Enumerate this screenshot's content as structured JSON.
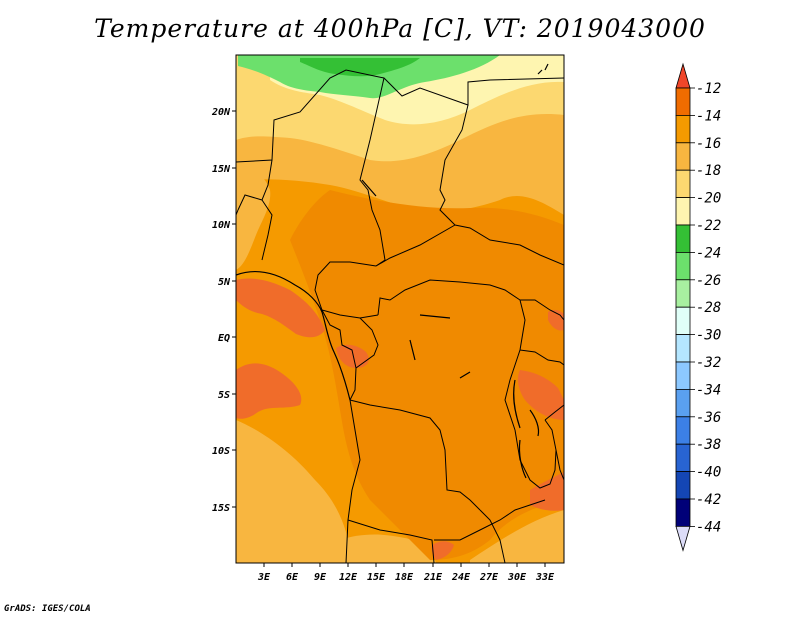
{
  "title": "Temperature at 400hPa [C], VT: 2019043000",
  "credit": "GrADS: IGES/COLA",
  "map": {
    "lon_labels": [
      "3E",
      "6E",
      "9E",
      "12E",
      "15E",
      "18E",
      "21E",
      "24E",
      "27E",
      "30E",
      "33E"
    ],
    "lat_labels": [
      "20N",
      "15N",
      "10N",
      "5N",
      "EQ",
      "5S",
      "10S",
      "15S"
    ]
  },
  "colorbar": {
    "labels": [
      "-12",
      "-14",
      "-16",
      "-18",
      "-20",
      "-22",
      "-24",
      "-26",
      "-28",
      "-30",
      "-32",
      "-34",
      "-36",
      "-38",
      "-40",
      "-42",
      "-44"
    ],
    "colors": [
      "#f0462a",
      "#f06c00",
      "#f59a00",
      "#f8b640",
      "#fcd870",
      "#fef5b0",
      "#34c035",
      "#6ce06c",
      "#a8f0a0",
      "#e0fff8",
      "#b4e6ff",
      "#8cc8ff",
      "#5aa0f0",
      "#3c80e6",
      "#2864d2",
      "#1446b4",
      "#000078",
      "#dcdcf8"
    ]
  }
}
